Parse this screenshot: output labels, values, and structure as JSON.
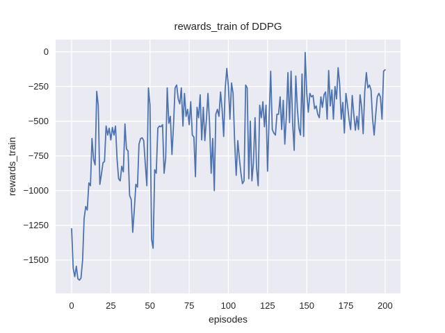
{
  "figure": {
    "title": "rewards_train of DDPG",
    "xlabel": "episodes",
    "ylabel": "rewards_train"
  },
  "chart_data": {
    "type": "line",
    "title": "rewards_train of DDPG",
    "xlabel": "episodes",
    "ylabel": "rewards_train",
    "grid": true,
    "legend": false,
    "xlim": [
      -10.2,
      209.8
    ],
    "ylim": [
      -1741,
      88
    ],
    "x_ticks": {
      "values": [
        0,
        25,
        50,
        75,
        100,
        125,
        150,
        175,
        200
      ],
      "labels": [
        "0",
        "25",
        "50",
        "75",
        "100",
        "125",
        "150",
        "175",
        "200"
      ]
    },
    "y_ticks": {
      "values": [
        0,
        -250,
        -500,
        -750,
        -1000,
        -1250,
        -1500
      ],
      "labels": [
        "0",
        "−250",
        "−500",
        "−750",
        "−1000",
        "−1250",
        "−1500"
      ]
    },
    "colors": {
      "figure_bg": "#ffffff",
      "plot_bg": "#eaeaf2",
      "grid": "#ffffff",
      "line": "#4c72b0",
      "text": "#262626"
    },
    "series": [
      {
        "name": "rewards_train",
        "color": "#4c72b0",
        "x_start": 0,
        "x_step": 1,
        "values": [
          -1275,
          -1560,
          -1620,
          -1545,
          -1635,
          -1645,
          -1630,
          -1500,
          -1200,
          -1115,
          -1140,
          -945,
          -965,
          -625,
          -775,
          -815,
          -285,
          -385,
          -955,
          -885,
          -800,
          -790,
          -535,
          -600,
          -550,
          -635,
          -545,
          -600,
          -535,
          -775,
          -915,
          -930,
          -825,
          -865,
          -520,
          -700,
          -715,
          -1035,
          -1065,
          -1300,
          -1135,
          -955,
          -975,
          -665,
          -625,
          -620,
          -640,
          -810,
          -965,
          -260,
          -385,
          -1350,
          -1415,
          -850,
          -875,
          -550,
          -535,
          -540,
          -525,
          -875,
          -765,
          -260,
          -515,
          -465,
          -740,
          -535,
          -260,
          -240,
          -340,
          -375,
          -260,
          -535,
          -300,
          -465,
          -415,
          -525,
          -360,
          -600,
          -615,
          -900,
          -400,
          -475,
          -310,
          -635,
          -400,
          -640,
          -485,
          -300,
          -515,
          -875,
          -625,
          -1000,
          -450,
          -415,
          -465,
          -290,
          -410,
          -610,
          -265,
          -120,
          -250,
          -485,
          -225,
          -300,
          -650,
          -890,
          -640,
          -765,
          -875,
          -950,
          -930,
          -240,
          -260,
          -915,
          -500,
          -930,
          -800,
          -475,
          -835,
          -965,
          -385,
          -475,
          -360,
          -540,
          -385,
          -860,
          -465,
          -140,
          -560,
          -585,
          -600,
          -450,
          -450,
          -325,
          -560,
          -350,
          -665,
          -460,
          -150,
          -510,
          -140,
          -515,
          -710,
          -175,
          -410,
          -550,
          -600,
          -160,
          -610,
          -5,
          -300,
          -435,
          -300,
          -325,
          -315,
          -410,
          -390,
          -450,
          -475,
          -325,
          -400,
          -310,
          -290,
          -485,
          -135,
          -390,
          -275,
          -485,
          -250,
          -340,
          -115,
          -235,
          -485,
          -365,
          -585,
          -300,
          -385,
          -490,
          -560,
          -315,
          -450,
          -565,
          -465,
          -560,
          -310,
          -400,
          -590,
          -285,
          -150,
          -260,
          -240,
          -275,
          -485,
          -600,
          -450,
          -325,
          -300,
          -325,
          -485,
          -140,
          -130
        ]
      }
    ]
  }
}
